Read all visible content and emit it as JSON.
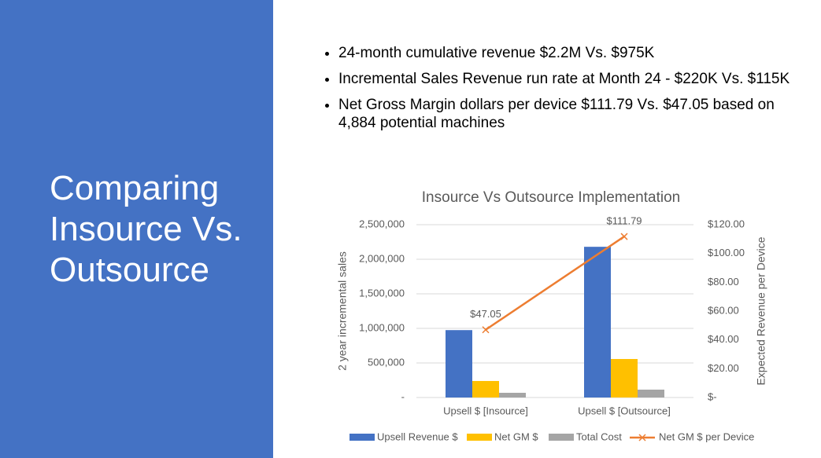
{
  "slide": {
    "title": "Comparing Insource Vs. Outsource",
    "bullets": [
      "24-month cumulative revenue $2.2M Vs. $975K",
      "Incremental Sales Revenue run rate at Month 24 - $220K Vs. $115K",
      "Net Gross Margin dollars per device $111.79 Vs. $47.05 based on 4,884 potential machines"
    ]
  },
  "chart_data": {
    "type": "bar",
    "title": "Insource Vs Outsource Implementation",
    "y_label": "2 year incremental sales",
    "y2_label": "Expected Revenue  per Device",
    "categories": [
      "Upsell $ [Insource]",
      "Upsell $ [Outsource]"
    ],
    "series": [
      {
        "name": "Upsell Revenue $",
        "type": "bar",
        "color": "#4472c4",
        "values": [
          975000,
          2180000
        ]
      },
      {
        "name": "Net GM $",
        "type": "bar",
        "color": "#ffc000",
        "values": [
          239000,
          557000
        ]
      },
      {
        "name": "Total Cost",
        "type": "bar",
        "color": "#a5a5a5",
        "values": [
          68000,
          114000
        ]
      },
      {
        "name": "Net GM $ per Device",
        "type": "line",
        "axis": "y2",
        "color": "#ed7d31",
        "values": [
          47.05,
          111.79
        ],
        "value_labels": [
          "$47.05",
          "$111.79"
        ]
      }
    ],
    "ylim": [
      0,
      2500000
    ],
    "yticks": [
      {
        "value": 0,
        "label": "-"
      },
      {
        "value": 500000,
        "label": "500,000"
      },
      {
        "value": 1000000,
        "label": "1,000,000"
      },
      {
        "value": 1500000,
        "label": "1,500,000"
      },
      {
        "value": 2000000,
        "label": "2,000,000"
      },
      {
        "value": 2500000,
        "label": "2,500,000"
      }
    ],
    "y2lim": [
      0,
      120
    ],
    "y2ticks": [
      {
        "value": 0,
        "label": "$-"
      },
      {
        "value": 20,
        "label": "$20.00"
      },
      {
        "value": 40,
        "label": "$40.00"
      },
      {
        "value": 60,
        "label": "$60.00"
      },
      {
        "value": 80,
        "label": "$80.00"
      },
      {
        "value": 100,
        "label": "$100.00"
      },
      {
        "value": 120,
        "label": "$120.00"
      }
    ],
    "grid": true,
    "legend": "bottom"
  }
}
